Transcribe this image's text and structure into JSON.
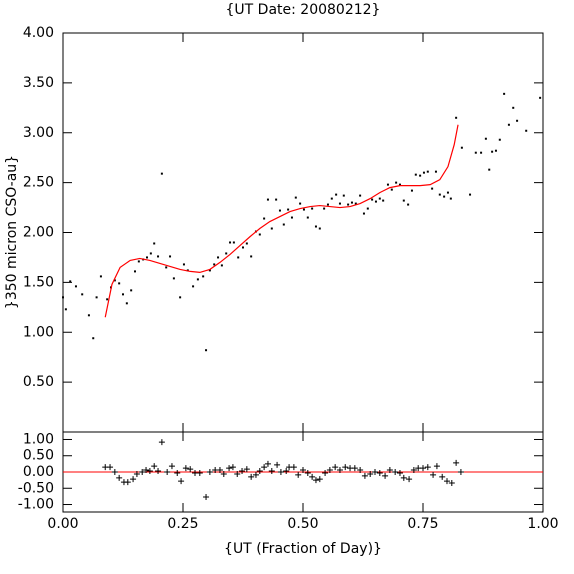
{
  "chart_data": [
    {
      "type": "scatter",
      "title": "{UT Date: 20080212}",
      "ylabel": "}350 micron CSO-au}",
      "xlim": [
        0,
        1
      ],
      "ylim": [
        0,
        4
      ],
      "xticks": [
        0,
        0.25,
        0.5,
        0.75,
        1
      ],
      "show_xtick_labels": false,
      "yticks": [
        {
          "value": 0.5,
          "label": "0.50"
        },
        {
          "value": 1,
          "label": "1.00"
        },
        {
          "value": 1.5,
          "label": "1.50"
        },
        {
          "value": 2,
          "label": "2.00"
        },
        {
          "value": 2.5,
          "label": "2.50"
        },
        {
          "value": 3,
          "label": "3.00"
        },
        {
          "value": 3.5,
          "label": "3.50"
        },
        {
          "value": 4,
          "label": "4.00"
        }
      ],
      "series": [
        {
          "type": "scatter",
          "marker": "dot",
          "color": "#000000",
          "x": [
            0,
            0.006,
            0.015,
            0.027,
            0.04,
            0.054,
            0.063,
            0.07,
            0.079,
            0.092,
            0.1,
            0.108,
            0.117,
            0.125,
            0.133,
            0.142,
            0.15,
            0.158,
            0.167,
            0.175,
            0.183,
            0.19,
            0.198,
            0.206,
            0.215,
            0.223,
            0.231,
            0.244,
            0.252,
            0.26,
            0.271,
            0.281,
            0.292,
            0.298,
            0.306,
            0.315,
            0.323,
            0.331,
            0.34,
            0.348,
            0.356,
            0.365,
            0.375,
            0.383,
            0.392,
            0.402,
            0.41,
            0.419,
            0.427,
            0.435,
            0.444,
            0.452,
            0.46,
            0.469,
            0.477,
            0.485,
            0.494,
            0.502,
            0.51,
            0.519,
            0.527,
            0.535,
            0.544,
            0.552,
            0.56,
            0.569,
            0.577,
            0.585,
            0.594,
            0.602,
            0.61,
            0.619,
            0.627,
            0.635,
            0.644,
            0.652,
            0.66,
            0.667,
            0.677,
            0.685,
            0.694,
            0.702,
            0.71,
            0.719,
            0.727,
            0.735,
            0.744,
            0.752,
            0.76,
            0.769,
            0.777,
            0.785,
            0.794,
            0.802,
            0.808,
            0.819,
            0.831,
            0.848,
            0.86,
            0.871,
            0.881,
            0.888,
            0.894,
            0.902,
            0.91,
            0.919,
            0.929,
            0.938,
            0.946,
            0.965,
            0.994
          ],
          "values": [
            1.35,
            1.23,
            1.51,
            1.46,
            1.38,
            1.17,
            0.94,
            1.35,
            1.56,
            1.33,
            1.45,
            1.52,
            1.49,
            1.38,
            1.29,
            1.42,
            1.61,
            1.71,
            1.73,
            1.75,
            1.79,
            1.89,
            1.76,
            2.59,
            1.65,
            1.76,
            1.54,
            1.35,
            1.68,
            1.62,
            1.46,
            1.53,
            1.56,
            0.82,
            1.62,
            1.68,
            1.75,
            1.67,
            1.79,
            1.9,
            1.9,
            1.75,
            1.85,
            1.89,
            1.76,
            2.01,
            1.98,
            2.14,
            2.33,
            2.04,
            2.33,
            2.22,
            2.08,
            2.23,
            2.15,
            2.35,
            2.29,
            2.23,
            2.15,
            2.24,
            2.06,
            2.04,
            2.24,
            2.28,
            2.34,
            2.38,
            2.29,
            2.37,
            2.28,
            2.3,
            2.29,
            2.37,
            2.19,
            2.24,
            2.33,
            2.31,
            2.34,
            2.32,
            2.48,
            2.43,
            2.5,
            2.48,
            2.32,
            2.28,
            2.42,
            2.58,
            2.57,
            2.6,
            2.61,
            2.44,
            2.61,
            2.38,
            2.36,
            2.4,
            2.34,
            3.15,
            2.85,
            2.38,
            2.8,
            2.8,
            2.94,
            2.63,
            2.81,
            2.82,
            2.93,
            3.39,
            3.08,
            3.25,
            3.12,
            3.02,
            3.35
          ]
        },
        {
          "type": "line",
          "color": "#ff0000",
          "x": [
            0.088,
            0.102,
            0.119,
            0.14,
            0.16,
            0.181,
            0.202,
            0.223,
            0.244,
            0.265,
            0.285,
            0.306,
            0.327,
            0.348,
            0.369,
            0.39,
            0.41,
            0.431,
            0.452,
            0.473,
            0.494,
            0.515,
            0.535,
            0.556,
            0.577,
            0.598,
            0.619,
            0.64,
            0.66,
            0.681,
            0.702,
            0.723,
            0.744,
            0.765,
            0.785,
            0.802,
            0.815,
            0.823
          ],
          "values": [
            1.15,
            1.48,
            1.65,
            1.72,
            1.74,
            1.72,
            1.69,
            1.66,
            1.63,
            1.61,
            1.6,
            1.63,
            1.7,
            1.78,
            1.87,
            1.96,
            2.04,
            2.11,
            2.16,
            2.21,
            2.24,
            2.26,
            2.27,
            2.26,
            2.25,
            2.26,
            2.29,
            2.34,
            2.4,
            2.45,
            2.47,
            2.47,
            2.47,
            2.48,
            2.53,
            2.66,
            2.88,
            3.08
          ]
        }
      ]
    },
    {
      "type": "scatter",
      "xlabel": "{UT (Fraction of Day)}",
      "xlim": [
        0,
        1
      ],
      "ylim": [
        -1.23,
        1.23
      ],
      "xticks": [
        {
          "value": 0,
          "label": "0.00"
        },
        {
          "value": 0.25,
          "label": "0.25"
        },
        {
          "value": 0.5,
          "label": "0.50"
        },
        {
          "value": 0.75,
          "label": "0.75"
        },
        {
          "value": 1,
          "label": "1.00"
        }
      ],
      "yticks": [
        {
          "value": -1,
          "label": "-1.00"
        },
        {
          "value": -0.5,
          "label": "-0.50"
        },
        {
          "value": 0,
          "label": "0.00"
        },
        {
          "value": 0.5,
          "label": "0.50"
        },
        {
          "value": 1,
          "label": "1.00"
        }
      ],
      "reference_line": 0,
      "reference_color": "#ff0000",
      "series": [
        {
          "type": "scatter",
          "marker": "plus",
          "color": "#000000",
          "x": [
            0.088,
            0.098,
            0.108,
            0.117,
            0.127,
            0.135,
            0.146,
            0.154,
            0.165,
            0.173,
            0.181,
            0.19,
            0.198,
            0.206,
            0.217,
            0.227,
            0.238,
            0.246,
            0.256,
            0.265,
            0.275,
            0.285,
            0.298,
            0.306,
            0.317,
            0.327,
            0.335,
            0.346,
            0.354,
            0.363,
            0.373,
            0.383,
            0.392,
            0.402,
            0.41,
            0.419,
            0.427,
            0.435,
            0.446,
            0.454,
            0.465,
            0.471,
            0.481,
            0.49,
            0.5,
            0.51,
            0.519,
            0.527,
            0.535,
            0.546,
            0.556,
            0.567,
            0.577,
            0.588,
            0.598,
            0.608,
            0.619,
            0.629,
            0.64,
            0.65,
            0.66,
            0.671,
            0.681,
            0.692,
            0.702,
            0.71,
            0.721,
            0.731,
            0.74,
            0.75,
            0.76,
            0.771,
            0.779,
            0.79,
            0.8,
            0.81,
            0.819,
            0.829
          ],
          "values": [
            0.15,
            0.15,
            0,
            -0.18,
            -0.31,
            -0.31,
            -0.22,
            -0.06,
            0,
            0.06,
            0.03,
            0.18,
            0.03,
            0.92,
            0,
            0.18,
            -0.03,
            -0.28,
            0.12,
            0.09,
            -0.03,
            -0.03,
            -0.77,
            0,
            0.06,
            0.06,
            -0.06,
            0.12,
            0.15,
            -0.06,
            0.03,
            0.09,
            -0.15,
            -0.09,
            0.03,
            0.15,
            0.25,
            0.03,
            0.22,
            0,
            0.03,
            0.15,
            0.15,
            -0.09,
            0.06,
            -0.03,
            -0.15,
            -0.25,
            -0.22,
            -0.03,
            0.06,
            0.15,
            0.06,
            0.15,
            0.12,
            0.12,
            0.06,
            -0.12,
            -0.06,
            0,
            -0.03,
            -0.12,
            0.06,
            0,
            -0.03,
            -0.18,
            -0.22,
            0.06,
            0.12,
            0.12,
            0.15,
            -0.09,
            0.18,
            -0.15,
            -0.28,
            -0.34,
            0.28,
            0
          ]
        }
      ]
    }
  ]
}
